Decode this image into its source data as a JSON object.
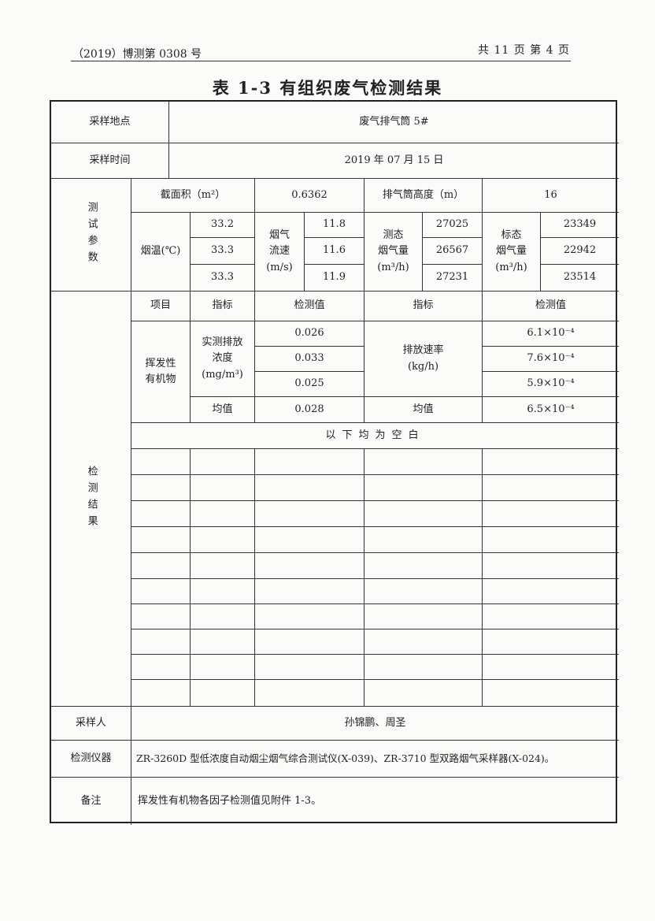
{
  "header": {
    "report_no": "（2019）博测第 0308 号",
    "pages": "共 11 页  第 4 页"
  },
  "title": "表 1-3  有组织废气检测结果",
  "sampling_site": {
    "label": "采样地点",
    "value": "废气排气筒 5#"
  },
  "sampling_time": {
    "label": "采样时间",
    "value": "2019 年 07 月 15 日"
  },
  "test_params": {
    "label": "测试参数",
    "area_label": "截面积（m²）",
    "area": "0.6362",
    "height_label": "排气筒高度（m）",
    "height": "16",
    "temp_label": "烟温(℃)",
    "temps": [
      "33.2",
      "33.3",
      "33.3"
    ],
    "velocity_label": "烟气\n流速\n(m/s)",
    "velocities": [
      "11.8",
      "11.6",
      "11.9"
    ],
    "actual_flow_label": "测态\n烟气量\n(m³/h)",
    "actual_flows": [
      "27025",
      "26567",
      "27231"
    ],
    "std_flow_label": "标态\n烟气量\n(m³/h)",
    "std_flows": [
      "23349",
      "22942",
      "23514"
    ]
  },
  "results": {
    "label": "检测结果",
    "headers": [
      "项目",
      "指标",
      "检测值",
      "指标",
      "检测值"
    ],
    "item": "挥发性有机物",
    "conc_label": "实测排放\n浓度\n(mg/m³)",
    "conc_values": [
      "0.026",
      "0.033",
      "0.025"
    ],
    "rate_label": "排放速率\n(kg/h)",
    "rate_values": [
      "6.1×10⁻⁴",
      "7.6×10⁻⁴",
      "5.9×10⁻⁴"
    ],
    "mean_label": "均值",
    "conc_mean": "0.028",
    "rate_mean": "6.5×10⁻⁴",
    "blank_note": "以下均为空白"
  },
  "sampler": {
    "label": "采样人",
    "value": "孙锦鹏、周圣"
  },
  "instrument": {
    "label": "检测仪器",
    "value": "ZR-3260D 型低浓度自动烟尘烟气综合测试仪(X-039)、ZR-3710 型双路烟气采样器(X-024)。"
  },
  "remarks": {
    "label": "备注",
    "value": "挥发性有机物各因子检测值见附件 1-3。"
  }
}
